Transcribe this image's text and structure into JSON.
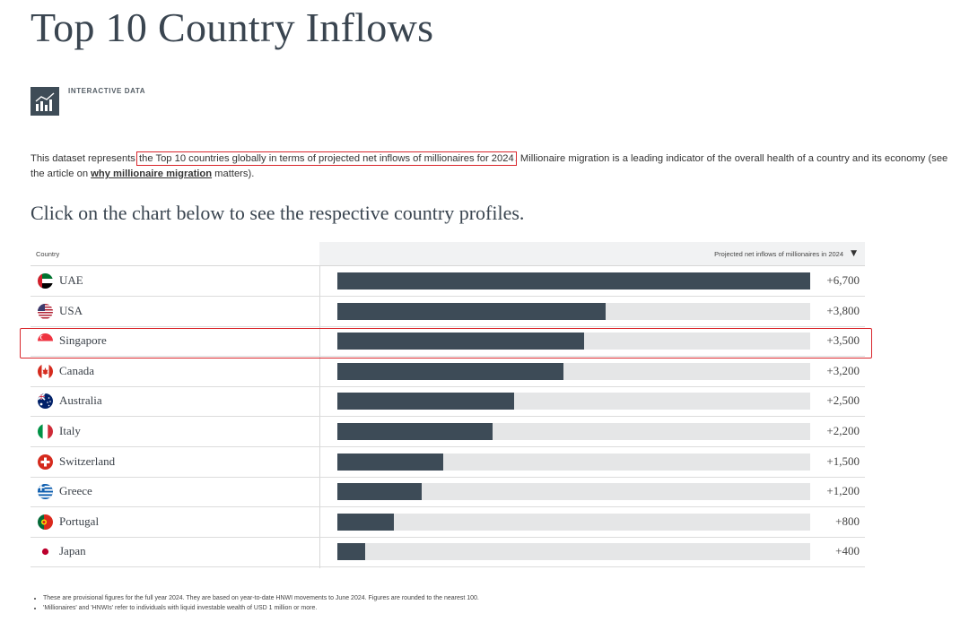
{
  "title": "Top 10 Country Inflows",
  "badge": {
    "label": "INTERACTIVE DATA",
    "icon": "bar-chart-icon"
  },
  "intro": {
    "before": "This dataset represents ",
    "highlight": "the Top 10 countries globally in terms of projected net inflows of millionaires for 2024",
    "after": ". Millionaire migration is a leading indicator of the overall health of a country and its economy (see the article on ",
    "link": "why millionaire migration",
    "end": " matters)."
  },
  "subtitle": "Click on the chart below to see the respective country profiles.",
  "chart_data": {
    "type": "bar",
    "orientation": "horizontal",
    "column_header_left": "Country",
    "column_header_right": "Projected net inflows of millionaires in 2024",
    "sort_indicator": "▼",
    "categories": [
      "UAE",
      "USA",
      "Singapore",
      "Canada",
      "Australia",
      "Italy",
      "Switzerland",
      "Greece",
      "Portugal",
      "Japan"
    ],
    "values": [
      6700,
      3800,
      3500,
      3200,
      2500,
      2200,
      1500,
      1200,
      800,
      400
    ],
    "value_labels": [
      "+6,700",
      "+3,800",
      "+3,500",
      "+3,200",
      "+2,500",
      "+2,200",
      "+1,500",
      "+1,200",
      "+800",
      "+400"
    ],
    "xlim": [
      0,
      6700
    ],
    "highlighted_category": "Singapore",
    "colors": {
      "bar": "#3d4b57",
      "track": "#e5e6e7",
      "highlight": "#d9262c"
    }
  },
  "flags": [
    "uae-flag-icon",
    "usa-flag-icon",
    "singapore-flag-icon",
    "canada-flag-icon",
    "australia-flag-icon",
    "italy-flag-icon",
    "switzerland-flag-icon",
    "greece-flag-icon",
    "portugal-flag-icon",
    "japan-flag-icon"
  ],
  "notes": [
    "These are provisional figures for the full year 2024. They are based on year-to-date HNWI movements to June 2024. Figures are rounded to the nearest 100.",
    "'Millionaires' and 'HNWIs' refer to individuals with liquid investable wealth of USD 1 million or more."
  ]
}
